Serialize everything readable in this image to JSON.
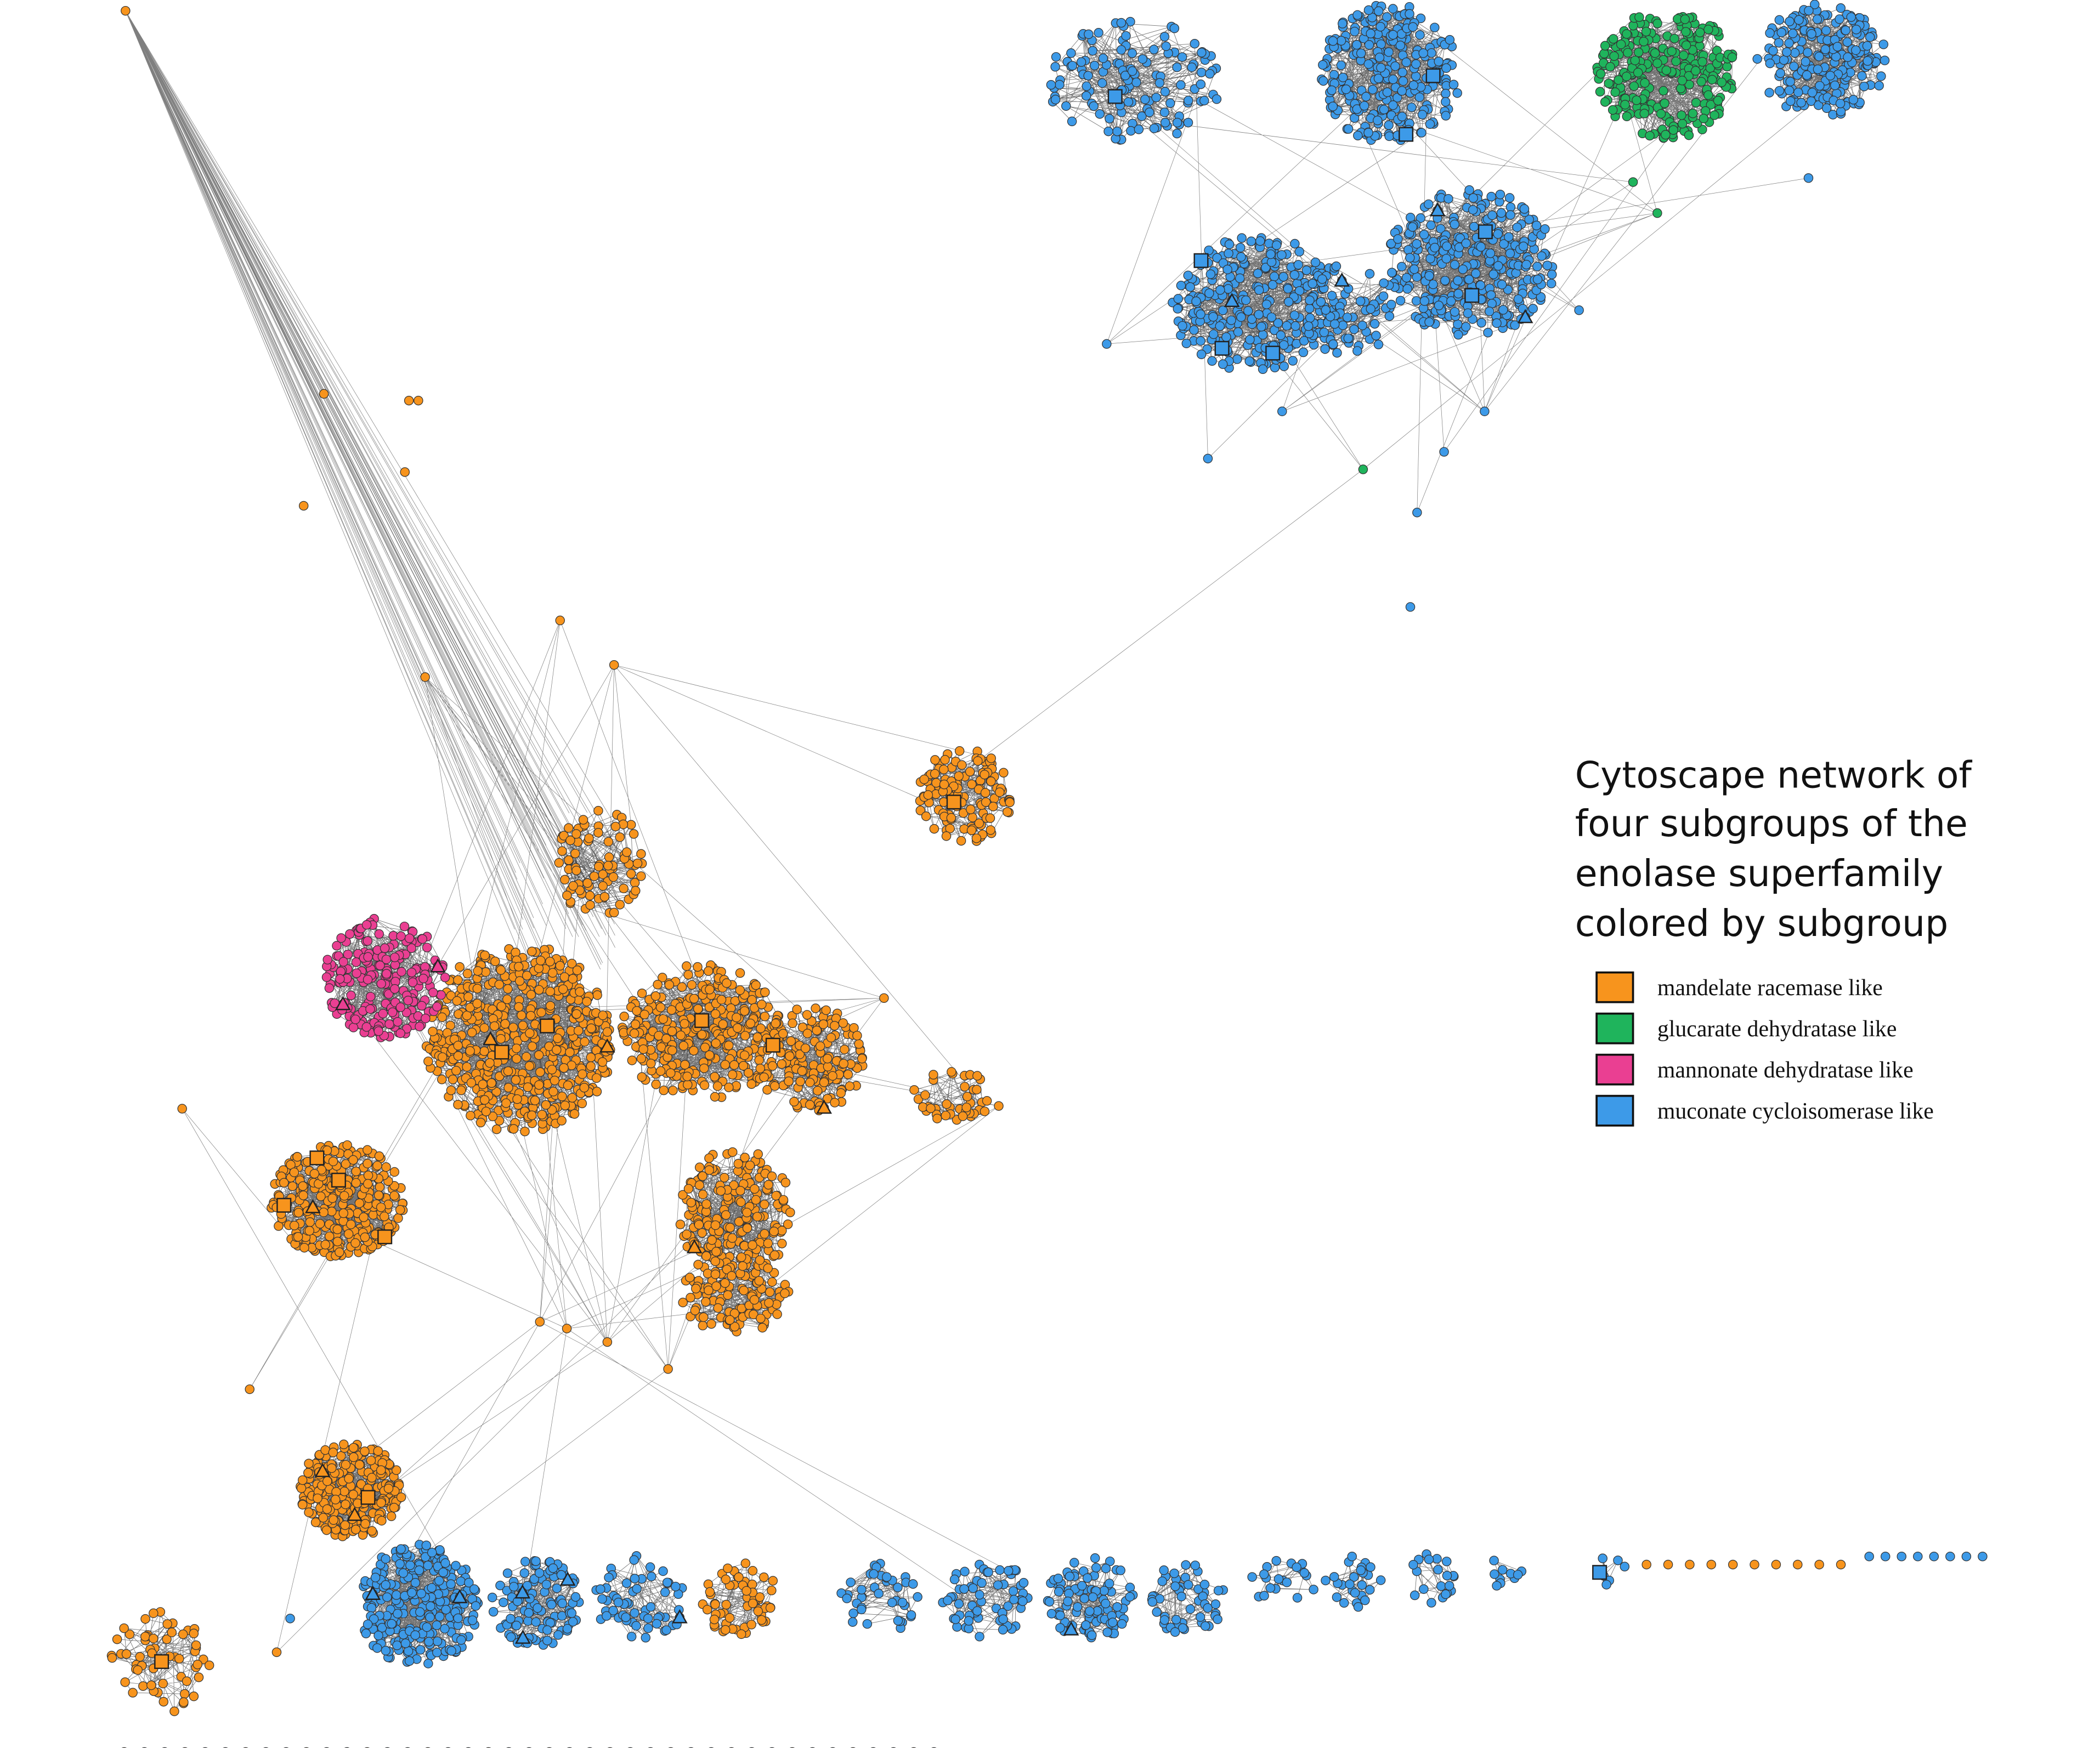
{
  "title": {
    "lines": [
      "Cytoscape network of",
      "four subgroups of the",
      "enolase superfamily",
      "colored by subgroup"
    ]
  },
  "legend": {
    "items": [
      {
        "label": "mandelate racemase like",
        "color": "#f7941d"
      },
      {
        "label": "glucarate dehydratase like",
        "color": "#1fb45c"
      },
      {
        "label": "mannonate dehydratase like",
        "color": "#ea3f92"
      },
      {
        "label": "muconate cycloisomerase like",
        "color": "#3d9ae8"
      }
    ]
  }
}
